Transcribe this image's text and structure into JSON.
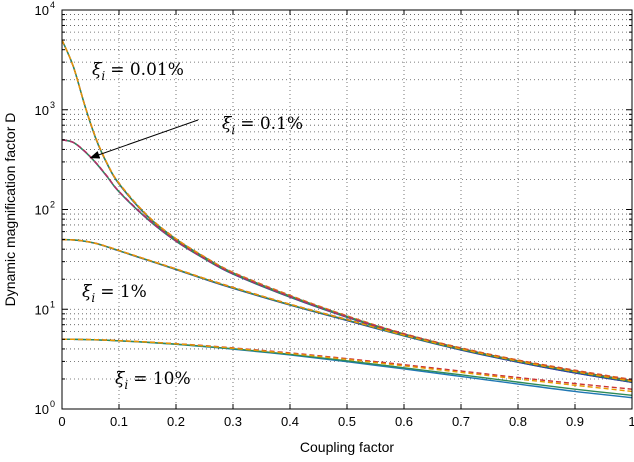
{
  "chart_data": {
    "type": "line",
    "title": "",
    "xlabel": "Coupling factor",
    "ylabel": "Dynamic magnification factor D",
    "xlim": [
      0,
      1
    ],
    "ylim_log10": [
      0,
      4
    ],
    "yscale": "log",
    "grid": "dotted major and minor",
    "x_ticks": [
      "0",
      "0.1",
      "0.2",
      "0.3",
      "0.4",
      "0.5",
      "0.6",
      "0.7",
      "0.8",
      "0.9",
      "1"
    ],
    "y_ticks": [
      {
        "base": "10",
        "exp": "0"
      },
      {
        "base": "10",
        "exp": "1"
      },
      {
        "base": "10",
        "exp": "2"
      },
      {
        "base": "10",
        "exp": "3"
      },
      {
        "base": "10",
        "exp": "4"
      }
    ],
    "x": [
      0,
      0.02,
      0.04,
      0.06,
      0.08,
      0.1,
      0.15,
      0.2,
      0.25,
      0.3,
      0.4,
      0.5,
      0.6,
      0.7,
      0.8,
      0.9,
      1.0
    ],
    "series": [
      {
        "group": "0.01%",
        "color": "#2c3e9e",
        "values": [
          5000,
          2700,
          1100,
          500,
          280,
          180,
          85,
          50,
          33,
          23,
          13.5,
          8.4,
          5.6,
          4.0,
          3.0,
          2.35,
          1.9
        ]
      },
      {
        "group": "0.01%",
        "color": "#2e8b57",
        "values": [
          5000,
          2710,
          1105,
          505,
          283,
          182,
          86,
          50.5,
          33.3,
          23.2,
          13.6,
          8.5,
          5.65,
          4.05,
          3.05,
          2.4,
          1.93
        ]
      },
      {
        "group": "0.01%",
        "color": "#cc3333",
        "dashed": true,
        "values": [
          5000,
          2690,
          1110,
          510,
          285,
          184,
          87,
          51,
          33.6,
          23.5,
          13.8,
          8.6,
          5.7,
          4.1,
          3.1,
          2.45,
          1.97
        ]
      },
      {
        "group": "0.01%",
        "color": "#e69a00",
        "dashed": true,
        "values": [
          5000,
          2705,
          1100,
          508,
          284,
          183,
          86.5,
          50.8,
          33.4,
          23.3,
          13.7,
          8.55,
          5.68,
          4.08,
          3.08,
          2.42,
          1.95
        ]
      },
      {
        "group": "0.1%",
        "color": "#2c3e9e",
        "values": [
          500,
          470,
          380,
          290,
          210,
          150,
          80,
          48,
          32,
          22.5,
          13.2,
          8.3,
          5.55,
          3.95,
          2.95,
          2.3,
          1.85
        ]
      },
      {
        "group": "0.1%",
        "color": "#2e8b57",
        "values": [
          500,
          471,
          382,
          291,
          211,
          151,
          80.5,
          48.3,
          32.2,
          22.7,
          13.3,
          8.35,
          5.6,
          4.0,
          3.0,
          2.35,
          1.88
        ]
      },
      {
        "group": "0.1%",
        "color": "#cc3333",
        "dashed": true,
        "values": [
          500,
          469,
          384,
          293,
          213,
          152,
          81,
          48.6,
          32.4,
          22.9,
          13.5,
          8.45,
          5.65,
          4.05,
          3.05,
          2.4,
          1.92
        ]
      },
      {
        "group": "0.1%",
        "color": "#b0306a",
        "dashed": true,
        "values": [
          500,
          470,
          383,
          292,
          212,
          151.5,
          80.8,
          48.5,
          32.3,
          22.8,
          13.4,
          8.4,
          5.62,
          4.02,
          3.02,
          2.37,
          1.9
        ]
      },
      {
        "group": "1%",
        "color": "#2c3e9e",
        "values": [
          50,
          49.5,
          48,
          45.5,
          42,
          38.5,
          31,
          25,
          20,
          16.2,
          11,
          7.7,
          5.4,
          3.9,
          2.95,
          2.3,
          1.85
        ]
      },
      {
        "group": "1%",
        "color": "#2e8b57",
        "values": [
          50,
          49.6,
          48.1,
          45.7,
          42.2,
          38.7,
          31.2,
          25.2,
          20.2,
          16.4,
          11.1,
          7.8,
          5.45,
          3.95,
          3.0,
          2.35,
          1.88
        ]
      },
      {
        "group": "1%",
        "color": "#cc3333",
        "dashed": true,
        "values": [
          50,
          49.5,
          48.2,
          45.8,
          42.4,
          38.9,
          31.4,
          25.4,
          20.4,
          16.6,
          11.25,
          7.9,
          5.55,
          4.02,
          3.05,
          2.4,
          1.93
        ]
      },
      {
        "group": "1%",
        "color": "#e69a00",
        "dashed": true,
        "values": [
          50,
          49.5,
          48.1,
          45.6,
          42.3,
          38.8,
          31.3,
          25.3,
          20.3,
          16.5,
          11.2,
          7.85,
          5.5,
          4.0,
          3.02,
          2.37,
          1.9
        ]
      },
      {
        "group": "10%",
        "color": "#1f77b4",
        "values": [
          5,
          4.99,
          4.97,
          4.93,
          4.88,
          4.82,
          4.65,
          4.45,
          4.22,
          3.98,
          3.48,
          2.98,
          2.52,
          2.12,
          1.78,
          1.5,
          1.3
        ]
      },
      {
        "group": "10%",
        "color": "#2e8b57",
        "values": [
          5,
          4.99,
          4.97,
          4.94,
          4.89,
          4.83,
          4.67,
          4.47,
          4.25,
          4.02,
          3.53,
          3.04,
          2.59,
          2.2,
          1.86,
          1.58,
          1.37
        ]
      },
      {
        "group": "10%",
        "color": "#cc3333",
        "dashed": true,
        "values": [
          5,
          4.99,
          4.98,
          4.95,
          4.9,
          4.85,
          4.7,
          4.52,
          4.32,
          4.1,
          3.65,
          3.2,
          2.78,
          2.4,
          2.07,
          1.8,
          1.58
        ]
      },
      {
        "group": "10%",
        "color": "#e69a00",
        "dashed": true,
        "values": [
          5,
          4.99,
          4.97,
          4.95,
          4.9,
          4.84,
          4.69,
          4.5,
          4.29,
          4.06,
          3.6,
          3.14,
          2.71,
          2.33,
          2.0,
          1.73,
          1.5
        ]
      }
    ],
    "annotations": [
      {
        "value": "= 0.01%"
      },
      {
        "value": "= 0.1%",
        "arrow": true,
        "arrow_to": {
          "x": 0.05,
          "y": 330
        }
      },
      {
        "value": "= 1%"
      },
      {
        "value": "= 10%"
      }
    ],
    "annotation_symbol": "ξ",
    "annotation_subscript": "i"
  }
}
